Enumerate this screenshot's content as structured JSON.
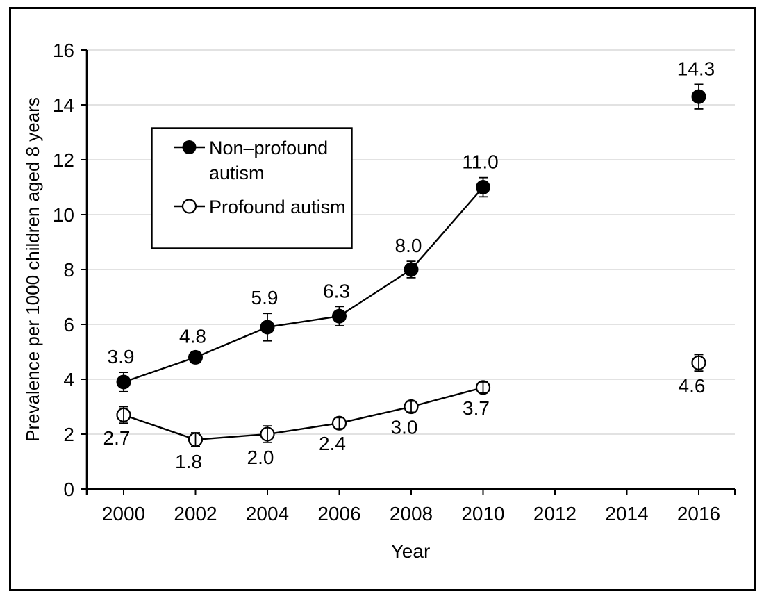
{
  "figure": {
    "background_color": "#ffffff",
    "border_color": "#000000",
    "gridline_color": "#d9d9d9"
  },
  "chart_data": {
    "type": "line",
    "title": "",
    "xlabel": "Year",
    "ylabel": "Prevalence per 1000 children aged 8 years",
    "xlim": [
      1999,
      2017
    ],
    "ylim": [
      0,
      16
    ],
    "x_ticks": [
      2000,
      2002,
      2004,
      2006,
      2008,
      2010,
      2012,
      2014,
      2016
    ],
    "y_ticks": [
      0,
      2,
      4,
      6,
      8,
      10,
      12,
      14,
      16
    ],
    "grid": "horizontal",
    "legend_position": "inside-upper-left",
    "series": [
      {
        "name": "Non–profound autism",
        "legend_lines": [
          "Non–profound",
          "autism"
        ],
        "marker": "filled-circle",
        "color": "#000000",
        "label_position": "above",
        "connected_x_range": [
          2000,
          2010
        ],
        "points": [
          {
            "x": 2000,
            "y": 3.9,
            "label": "3.9",
            "err": 0.35
          },
          {
            "x": 2002,
            "y": 4.8,
            "label": "4.8",
            "err": 0.2
          },
          {
            "x": 2004,
            "y": 5.9,
            "label": "5.9",
            "err": 0.5
          },
          {
            "x": 2006,
            "y": 6.3,
            "label": "6.3",
            "err": 0.35
          },
          {
            "x": 2008,
            "y": 8.0,
            "label": "8.0",
            "err": 0.3
          },
          {
            "x": 2010,
            "y": 11.0,
            "label": "11.0",
            "err": 0.35
          },
          {
            "x": 2016,
            "y": 14.3,
            "label": "14.3",
            "err": 0.45
          }
        ]
      },
      {
        "name": "Profound autism",
        "legend_lines": [
          "Profound autism"
        ],
        "marker": "open-circle",
        "color": "#000000",
        "label_position": "below",
        "connected_x_range": [
          2000,
          2010
        ],
        "points": [
          {
            "x": 2000,
            "y": 2.7,
            "label": "2.7",
            "err": 0.3
          },
          {
            "x": 2002,
            "y": 1.8,
            "label": "1.8",
            "err": 0.25
          },
          {
            "x": 2004,
            "y": 2.0,
            "label": "2.0",
            "err": 0.3
          },
          {
            "x": 2006,
            "y": 2.4,
            "label": "2.4",
            "err": 0.2
          },
          {
            "x": 2008,
            "y": 3.0,
            "label": "3.0",
            "err": 0.2
          },
          {
            "x": 2010,
            "y": 3.7,
            "label": "3.7",
            "err": 0.2
          },
          {
            "x": 2016,
            "y": 4.6,
            "label": "4.6",
            "err": 0.3
          }
        ]
      }
    ]
  }
}
